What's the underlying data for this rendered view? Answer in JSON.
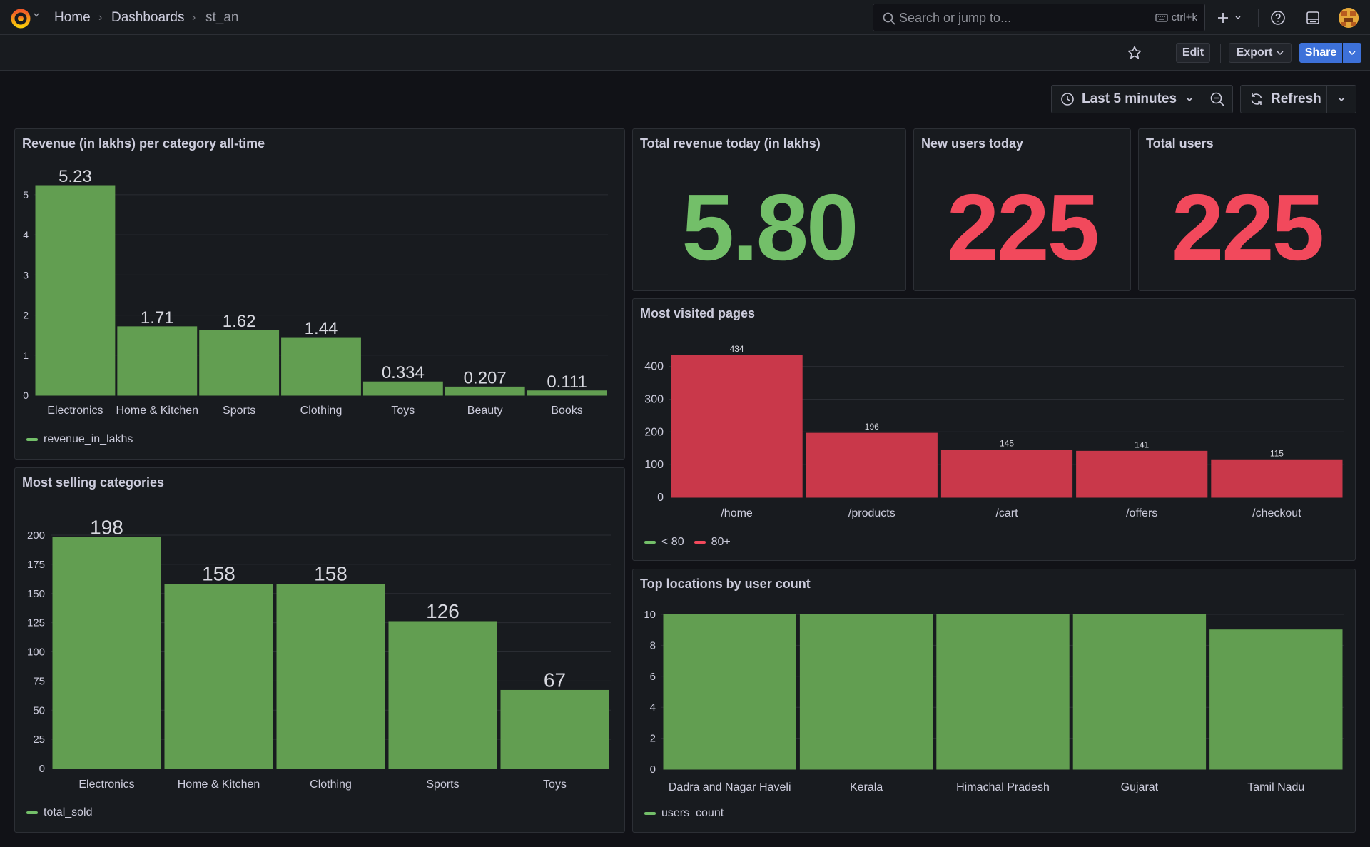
{
  "nav": {
    "breadcrumb": [
      "Home",
      "Dashboards",
      "st_an"
    ],
    "search_placeholder": "Search or jump to...",
    "search_shortcut": "ctrl+k"
  },
  "toolbar": {
    "edit_label": "Edit",
    "export_label": "Export",
    "share_label": "Share"
  },
  "time": {
    "range_label": "Last 5 minutes",
    "refresh_label": "Refresh"
  },
  "colors": {
    "green": "#73bf69",
    "bar_green": "#629e51",
    "red": "#f2495c",
    "bar_red": "#c9384a",
    "share_blue": "#3d71d9"
  },
  "panels": {
    "revenue": {
      "title": "Revenue (in lakhs) per category all-time"
    },
    "total_revenue": {
      "title": "Total revenue today (in lakhs)",
      "value": "5.80"
    },
    "new_users": {
      "title": "New users today",
      "value": "225"
    },
    "total_users": {
      "title": "Total users",
      "value": "225"
    },
    "visited": {
      "title": "Most visited pages"
    },
    "selling": {
      "title": "Most selling categories"
    },
    "locations": {
      "title": "Top locations by user count"
    }
  },
  "chart_data": [
    {
      "id": "revenue",
      "type": "bar",
      "title": "Revenue (in lakhs) per category all-time",
      "categories": [
        "Electronics",
        "Home & Kitchen",
        "Sports",
        "Clothing",
        "Toys",
        "Beauty",
        "Books"
      ],
      "values": [
        5.23,
        1.71,
        1.62,
        1.44,
        0.334,
        0.207,
        0.111
      ],
      "value_labels": [
        "5.23",
        "1.71",
        "1.62",
        "1.44",
        "0.334",
        "0.207",
        "0.111"
      ],
      "yticks": [
        0,
        1,
        2,
        3,
        4,
        5
      ],
      "ylim": [
        0,
        5.23
      ],
      "legend": [
        "revenue_in_lakhs"
      ],
      "color": "green",
      "grid": true
    },
    {
      "id": "visited",
      "type": "bar",
      "title": "Most visited pages",
      "categories": [
        "/home",
        "/products",
        "/cart",
        "/offers",
        "/checkout"
      ],
      "values": [
        434,
        196,
        145,
        141,
        115
      ],
      "value_labels": [
        "434",
        "196",
        "145",
        "141",
        "115"
      ],
      "yticks": [
        0,
        100,
        200,
        300,
        400
      ],
      "ylim": [
        0,
        434
      ],
      "legend": [
        "< 80",
        "80+"
      ],
      "color": "red",
      "grid": true
    },
    {
      "id": "selling",
      "type": "bar",
      "title": "Most selling categories",
      "categories": [
        "Electronics",
        "Home & Kitchen",
        "Clothing",
        "Sports",
        "Toys"
      ],
      "values": [
        198,
        158,
        158,
        126,
        67
      ],
      "value_labels": [
        "198",
        "158",
        "158",
        "126",
        "67"
      ],
      "yticks": [
        0,
        25,
        50,
        75,
        100,
        125,
        150,
        175,
        200
      ],
      "ylim": [
        0,
        200
      ],
      "legend": [
        "total_sold"
      ],
      "color": "green",
      "grid": true
    },
    {
      "id": "locations",
      "type": "bar",
      "title": "Top locations by user count",
      "categories": [
        "Dadra and Nagar Haveli",
        "Kerala",
        "Himachal Pradesh",
        "Gujarat",
        "Tamil Nadu"
      ],
      "values": [
        10,
        10,
        10,
        10,
        9
      ],
      "value_labels": [],
      "yticks": [
        0,
        2,
        4,
        6,
        8,
        10
      ],
      "ylim": [
        0,
        10
      ],
      "legend": [
        "users_count"
      ],
      "color": "green",
      "grid": true
    }
  ]
}
